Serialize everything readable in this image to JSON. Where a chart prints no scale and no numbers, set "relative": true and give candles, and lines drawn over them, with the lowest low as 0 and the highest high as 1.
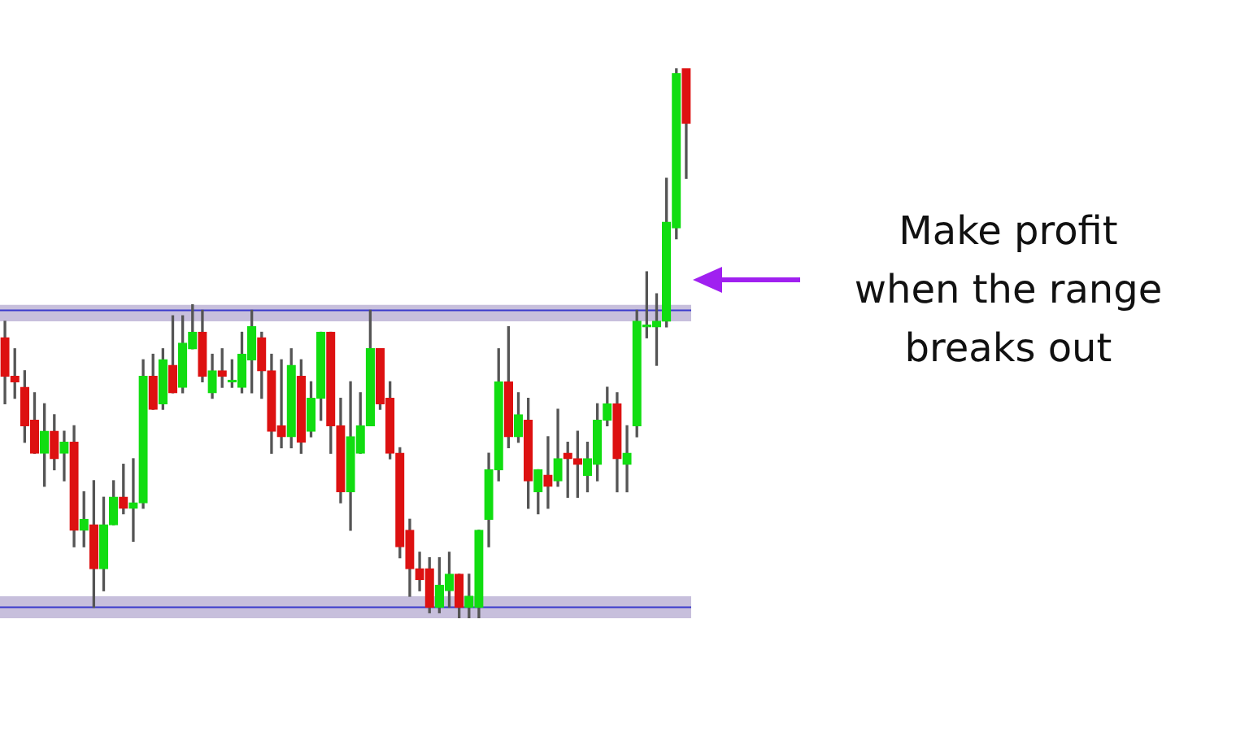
{
  "chart_data": {
    "type": "candlestick",
    "relative": true,
    "tick_labels": false,
    "categories": [
      null,
      null,
      null,
      null,
      null,
      null,
      null,
      null,
      null,
      null,
      null,
      null,
      null,
      null,
      null,
      null,
      null,
      null,
      null,
      null,
      null,
      null,
      null,
      null,
      null,
      null,
      null,
      null,
      null,
      null,
      null,
      null,
      null,
      null,
      null,
      null,
      null,
      null,
      null,
      null,
      null,
      null,
      null,
      null,
      null,
      null,
      null,
      null,
      null,
      null,
      null,
      null,
      null,
      null,
      null,
      null,
      null,
      null,
      null,
      null,
      null,
      null,
      null,
      null,
      null,
      null,
      null,
      null,
      null,
      null
    ],
    "ohlc": [
      [
        0.51,
        0.54,
        0.39,
        0.44
      ],
      [
        0.44,
        0.49,
        0.4,
        0.43
      ],
      [
        0.42,
        0.45,
        0.32,
        0.35
      ],
      [
        0.36,
        0.41,
        0.3,
        0.3
      ],
      [
        0.3,
        0.39,
        0.24,
        0.34
      ],
      [
        0.34,
        0.37,
        0.27,
        0.29
      ],
      [
        0.3,
        0.34,
        0.25,
        0.32
      ],
      [
        0.32,
        0.35,
        0.13,
        0.16
      ],
      [
        0.16,
        0.23,
        0.13,
        0.18
      ],
      [
        0.17,
        0.25,
        0.02,
        0.09
      ],
      [
        0.09,
        0.22,
        0.05,
        0.17
      ],
      [
        0.17,
        0.25,
        0.17,
        0.22
      ],
      [
        0.22,
        0.28,
        0.19,
        0.2
      ],
      [
        0.2,
        0.29,
        0.14,
        0.21
      ],
      [
        0.21,
        0.47,
        0.2,
        0.44
      ],
      [
        0.44,
        0.48,
        0.38,
        0.38
      ],
      [
        0.39,
        0.49,
        0.38,
        0.47
      ],
      [
        0.46,
        0.55,
        0.41,
        0.41
      ],
      [
        0.42,
        0.55,
        0.41,
        0.5
      ],
      [
        0.49,
        0.57,
        0.49,
        0.52
      ],
      [
        0.52,
        0.56,
        0.43,
        0.44
      ],
      [
        0.41,
        0.48,
        0.4,
        0.45
      ],
      [
        0.45,
        0.49,
        0.42,
        0.44
      ],
      [
        0.43,
        0.47,
        0.42,
        0.43
      ],
      [
        0.42,
        0.52,
        0.41,
        0.48
      ],
      [
        0.47,
        0.56,
        0.41,
        0.53
      ],
      [
        0.51,
        0.52,
        0.4,
        0.45
      ],
      [
        0.45,
        0.48,
        0.3,
        0.34
      ],
      [
        0.35,
        0.47,
        0.31,
        0.33
      ],
      [
        0.33,
        0.49,
        0.31,
        0.46
      ],
      [
        0.44,
        0.47,
        0.3,
        0.32
      ],
      [
        0.34,
        0.43,
        0.33,
        0.4
      ],
      [
        0.4,
        0.52,
        0.36,
        0.52
      ],
      [
        0.52,
        0.52,
        0.3,
        0.35
      ],
      [
        0.35,
        0.4,
        0.21,
        0.23
      ],
      [
        0.23,
        0.43,
        0.16,
        0.33
      ],
      [
        0.3,
        0.41,
        0.3,
        0.35
      ],
      [
        0.35,
        0.56,
        0.35,
        0.49
      ],
      [
        0.49,
        0.49,
        0.38,
        0.39
      ],
      [
        0.4,
        0.43,
        0.29,
        0.3
      ],
      [
        0.3,
        0.31,
        0.11,
        0.13
      ],
      [
        0.16,
        0.18,
        0.04,
        0.09
      ],
      [
        0.09,
        0.12,
        0.05,
        0.07
      ],
      [
        0.09,
        0.11,
        0.01,
        0.02
      ],
      [
        0.02,
        0.11,
        0.01,
        0.06
      ],
      [
        0.05,
        0.12,
        0.02,
        0.08
      ],
      [
        0.08,
        0.08,
        0.0,
        0.02
      ],
      [
        0.02,
        0.08,
        0.0,
        0.04
      ],
      [
        0.02,
        0.16,
        0.0,
        0.16
      ],
      [
        0.18,
        0.3,
        0.13,
        0.27
      ],
      [
        0.27,
        0.49,
        0.25,
        0.43
      ],
      [
        0.43,
        0.53,
        0.31,
        0.33
      ],
      [
        0.33,
        0.41,
        0.32,
        0.37
      ],
      [
        0.36,
        0.4,
        0.2,
        0.25
      ],
      [
        0.23,
        0.27,
        0.19,
        0.27
      ],
      [
        0.26,
        0.33,
        0.2,
        0.24
      ],
      [
        0.25,
        0.38,
        0.24,
        0.29
      ],
      [
        0.3,
        0.32,
        0.22,
        0.29
      ],
      [
        0.29,
        0.34,
        0.22,
        0.28
      ],
      [
        0.26,
        0.32,
        0.23,
        0.29
      ],
      [
        0.28,
        0.39,
        0.25,
        0.36
      ],
      [
        0.36,
        0.42,
        0.35,
        0.39
      ],
      [
        0.39,
        0.41,
        0.23,
        0.29
      ],
      [
        0.28,
        0.35,
        0.23,
        0.3
      ],
      [
        0.35,
        0.56,
        0.33,
        0.54
      ],
      [
        0.53,
        0.63,
        0.51,
        0.53
      ],
      [
        0.53,
        0.59,
        0.46,
        0.54
      ],
      [
        0.54,
        0.8,
        0.53,
        0.72
      ],
      [
        0.71,
        1.0,
        0.69,
        0.99
      ],
      [
        1.0,
        1.0,
        0.8,
        0.9
      ]
    ],
    "colors": [
      "#dd1111",
      "#dd1111",
      "#dd1111",
      "#dd1111",
      "#11dd11",
      "#dd1111",
      "#11dd11",
      "#dd1111",
      "#11dd11",
      "#dd1111",
      "#11dd11",
      "#11dd11",
      "#dd1111",
      "#11dd11",
      "#11dd11",
      "#dd1111",
      "#11dd11",
      "#dd1111",
      "#11dd11",
      "#11dd11",
      "#dd1111",
      "#11dd11",
      "#dd1111",
      "#11dd11",
      "#11dd11",
      "#11dd11",
      "#dd1111",
      "#dd1111",
      "#dd1111",
      "#11dd11",
      "#dd1111",
      "#11dd11",
      "#11dd11",
      "#dd1111",
      "#dd1111",
      "#11dd11",
      "#11dd11",
      "#11dd11",
      "#dd1111",
      "#dd1111",
      "#dd1111",
      "#dd1111",
      "#dd1111",
      "#dd1111",
      "#11dd11",
      "#11dd11",
      "#dd1111",
      "#11dd11",
      "#11dd11",
      "#11dd11",
      "#11dd11",
      "#dd1111",
      "#11dd11",
      "#dd1111",
      "#11dd11",
      "#dd1111",
      "#11dd11",
      "#dd1111",
      "#dd1111",
      "#11dd11",
      "#11dd11",
      "#11dd11",
      "#dd1111",
      "#11dd11",
      "#11dd11",
      "#11dd11",
      "#11dd11",
      "#11dd11",
      "#11dd11",
      "#dd1111"
    ],
    "ref_lines": [
      {
        "axis": "y",
        "value": 0.56,
        "color": "#3a3acc"
      },
      {
        "axis": "y",
        "value": 0.02,
        "color": "#3a3acc"
      }
    ],
    "bands": [
      {
        "axis": "y",
        "from": 0.54,
        "to": 0.57,
        "color": "#b4aad0"
      },
      {
        "axis": "y",
        "from": 0.0,
        "to": 0.04,
        "color": "#b4aad0"
      }
    ],
    "annotations": [
      "Make profit\nwhen the range\nbreaks out"
    ]
  }
}
